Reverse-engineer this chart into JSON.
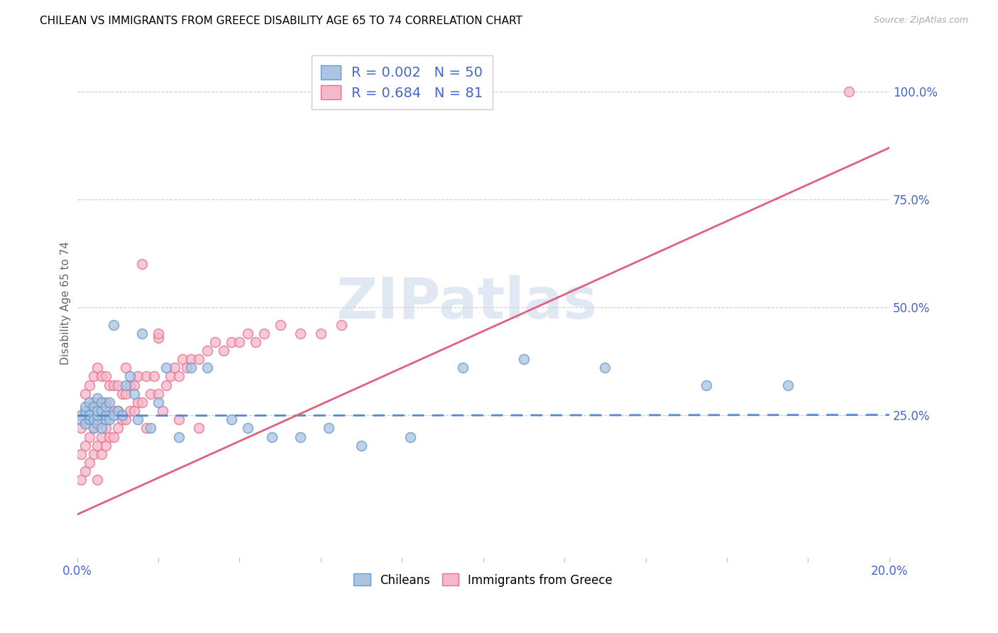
{
  "title": "CHILEAN VS IMMIGRANTS FROM GREECE DISABILITY AGE 65 TO 74 CORRELATION CHART",
  "source": "Source: ZipAtlas.com",
  "ylabel": "Disability Age 65 to 74",
  "xlim": [
    0.0,
    0.2
  ],
  "ylim": [
    -0.08,
    1.1
  ],
  "yticks_right": [
    0.25,
    0.5,
    0.75,
    1.0
  ],
  "ytick_right_labels": [
    "25.0%",
    "50.0%",
    "75.0%",
    "100.0%"
  ],
  "r1": "0.002",
  "n1": "50",
  "r2": "0.684",
  "n2": "81",
  "color_chilean_fill": "#aac4e2",
  "color_chilean_edge": "#6699cc",
  "color_greek_fill": "#f5b8ca",
  "color_greek_edge": "#e87090",
  "color_chilean_line": "#5588cc",
  "color_greek_line": "#e06080",
  "color_axis_text": "#4466cc",
  "watermark": "ZIPatlas",
  "chilean_x": [
    0.001,
    0.001,
    0.002,
    0.002,
    0.002,
    0.003,
    0.003,
    0.003,
    0.004,
    0.004,
    0.004,
    0.005,
    0.005,
    0.005,
    0.005,
    0.006,
    0.006,
    0.006,
    0.007,
    0.007,
    0.007,
    0.008,
    0.008,
    0.009,
    0.009,
    0.01,
    0.011,
    0.012,
    0.013,
    0.014,
    0.015,
    0.016,
    0.018,
    0.02,
    0.022,
    0.025,
    0.028,
    0.032,
    0.038,
    0.042,
    0.048,
    0.055,
    0.062,
    0.07,
    0.082,
    0.095,
    0.11,
    0.13,
    0.155,
    0.175
  ],
  "chilean_y": [
    0.25,
    0.24,
    0.23,
    0.26,
    0.27,
    0.24,
    0.25,
    0.28,
    0.22,
    0.24,
    0.27,
    0.23,
    0.25,
    0.26,
    0.29,
    0.22,
    0.26,
    0.28,
    0.24,
    0.25,
    0.27,
    0.24,
    0.28,
    0.25,
    0.46,
    0.26,
    0.25,
    0.32,
    0.34,
    0.3,
    0.24,
    0.44,
    0.22,
    0.28,
    0.36,
    0.2,
    0.36,
    0.36,
    0.24,
    0.22,
    0.2,
    0.2,
    0.22,
    0.18,
    0.2,
    0.36,
    0.38,
    0.36,
    0.32,
    0.32
  ],
  "greek_x": [
    0.001,
    0.001,
    0.001,
    0.002,
    0.002,
    0.002,
    0.002,
    0.003,
    0.003,
    0.003,
    0.003,
    0.004,
    0.004,
    0.004,
    0.004,
    0.005,
    0.005,
    0.005,
    0.005,
    0.005,
    0.006,
    0.006,
    0.006,
    0.006,
    0.007,
    0.007,
    0.007,
    0.007,
    0.008,
    0.008,
    0.008,
    0.009,
    0.009,
    0.009,
    0.01,
    0.01,
    0.01,
    0.011,
    0.011,
    0.012,
    0.012,
    0.012,
    0.013,
    0.013,
    0.014,
    0.014,
    0.015,
    0.015,
    0.016,
    0.017,
    0.017,
    0.018,
    0.019,
    0.02,
    0.021,
    0.022,
    0.023,
    0.024,
    0.025,
    0.026,
    0.027,
    0.028,
    0.03,
    0.032,
    0.034,
    0.036,
    0.038,
    0.04,
    0.042,
    0.044,
    0.046,
    0.05,
    0.055,
    0.06,
    0.065,
    0.02,
    0.025,
    0.03,
    0.016,
    0.02,
    0.19
  ],
  "greek_y": [
    0.1,
    0.16,
    0.22,
    0.12,
    0.18,
    0.24,
    0.3,
    0.14,
    0.2,
    0.26,
    0.32,
    0.16,
    0.22,
    0.28,
    0.34,
    0.1,
    0.18,
    0.24,
    0.28,
    0.36,
    0.16,
    0.2,
    0.26,
    0.34,
    0.18,
    0.22,
    0.28,
    0.34,
    0.2,
    0.26,
    0.32,
    0.2,
    0.26,
    0.32,
    0.22,
    0.26,
    0.32,
    0.24,
    0.3,
    0.24,
    0.3,
    0.36,
    0.26,
    0.32,
    0.26,
    0.32,
    0.28,
    0.34,
    0.28,
    0.22,
    0.34,
    0.3,
    0.34,
    0.3,
    0.26,
    0.32,
    0.34,
    0.36,
    0.34,
    0.38,
    0.36,
    0.38,
    0.38,
    0.4,
    0.42,
    0.4,
    0.42,
    0.42,
    0.44,
    0.42,
    0.44,
    0.46,
    0.44,
    0.44,
    0.46,
    0.43,
    0.24,
    0.22,
    0.6,
    0.44,
    1.0
  ]
}
